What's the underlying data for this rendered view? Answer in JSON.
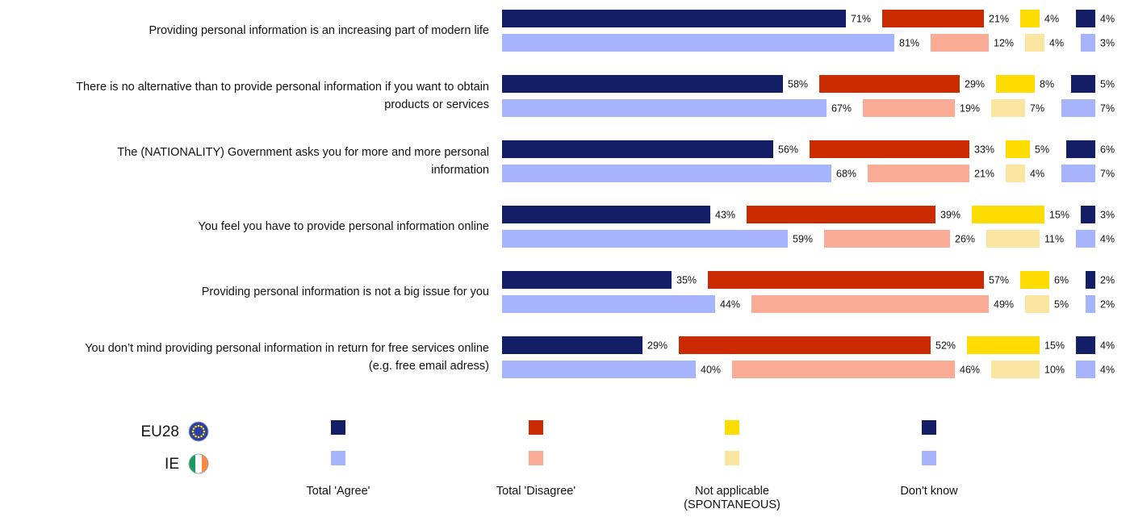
{
  "chart_data": {
    "type": "bar",
    "orientation": "horizontal",
    "categories": [
      [
        "Providing personal information is an increasing part of modern life"
      ],
      [
        "There is no alternative than to provide personal information if you want to obtain",
        "products or services"
      ],
      [
        "The (NATIONALITY) Government asks you for more and more personal",
        "information"
      ],
      [
        "You feel you have to provide personal information online"
      ],
      [
        "Providing personal information is not a big issue for you"
      ],
      [
        "You don’t mind providing personal information in return for free services online",
        "(e.g. free email adress)"
      ]
    ],
    "groups": [
      "EU28",
      "IE"
    ],
    "series": [
      {
        "name": "Total 'Agree'",
        "colors": [
          "#141e66",
          "#a6b4fd"
        ],
        "values": [
          [
            71,
            81
          ],
          [
            58,
            67
          ],
          [
            56,
            68
          ],
          [
            43,
            59
          ],
          [
            35,
            44
          ],
          [
            29,
            40
          ]
        ],
        "value_labels": [
          [
            "71%",
            "81%"
          ],
          [
            "58%",
            "67%"
          ],
          [
            "56%",
            "68%"
          ],
          [
            "43%",
            "59%"
          ],
          [
            "35%",
            "44%"
          ],
          [
            "29%",
            "40%"
          ]
        ]
      },
      {
        "name": "Total 'Disagree'",
        "colors": [
          "#cc2a00",
          "#f9ab96"
        ],
        "values": [
          [
            21,
            12
          ],
          [
            29,
            19
          ],
          [
            33,
            21
          ],
          [
            39,
            26
          ],
          [
            57,
            49
          ],
          [
            52,
            46
          ]
        ],
        "value_labels": [
          [
            "21%",
            "12%"
          ],
          [
            "29%",
            "19%"
          ],
          [
            "33%",
            "21%"
          ],
          [
            "39%",
            "26%"
          ],
          [
            "57%",
            "49%"
          ],
          [
            "52%",
            "46%"
          ]
        ]
      },
      {
        "name": "Not applicable (SPONTANEOUS)",
        "colors": [
          "#ffdc00",
          "#fbe5a2"
        ],
        "values": [
          [
            4,
            4
          ],
          [
            8,
            7
          ],
          [
            5,
            4
          ],
          [
            15,
            11
          ],
          [
            6,
            5
          ],
          [
            15,
            10
          ]
        ],
        "value_labels": [
          [
            "4%",
            "4%"
          ],
          [
            "8%",
            "7%"
          ],
          [
            "5%",
            "4%"
          ],
          [
            "15%",
            "11%"
          ],
          [
            "6%",
            "5%"
          ],
          [
            "15%",
            "10%"
          ]
        ]
      },
      {
        "name": "Don't know",
        "colors": [
          "#141e66",
          "#a6b4fd"
        ],
        "values": [
          [
            4,
            3
          ],
          [
            5,
            7
          ],
          [
            6,
            7
          ],
          [
            3,
            4
          ],
          [
            2,
            2
          ],
          [
            4,
            4
          ]
        ],
        "value_labels": [
          [
            "4%",
            "3%"
          ],
          [
            "5%",
            "7%"
          ],
          [
            "6%",
            "7%"
          ],
          [
            "3%",
            "4%"
          ],
          [
            "2%",
            "2%"
          ],
          [
            "4%",
            "4%"
          ]
        ]
      }
    ]
  }
}
